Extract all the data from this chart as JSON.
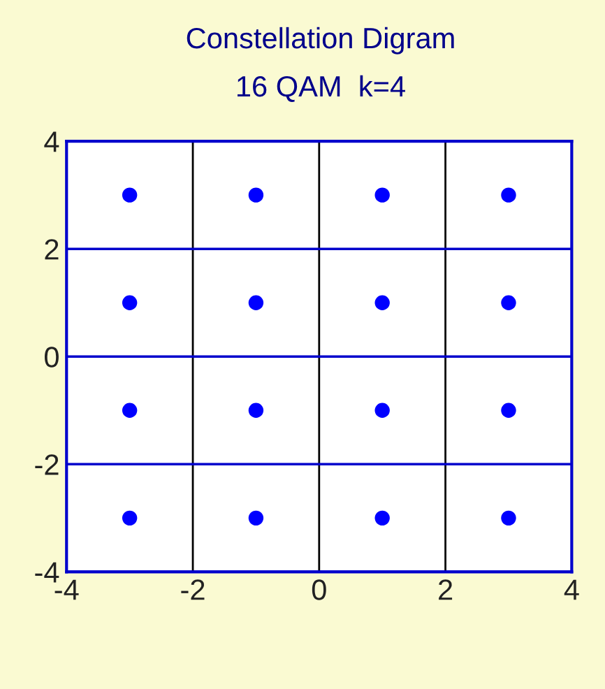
{
  "chart_data": {
    "type": "scatter",
    "title": "Constellation Digram",
    "subtitle": "16 QAM  k=4",
    "x": [
      -3,
      -1,
      1,
      3,
      -3,
      -1,
      1,
      3,
      -3,
      -1,
      1,
      3,
      -3,
      -1,
      1,
      3
    ],
    "series": [
      {
        "color": "#0000ff",
        "values": [
          3,
          3,
          3,
          3,
          1,
          1,
          1,
          1,
          -1,
          -1,
          -1,
          -1,
          -3,
          -3,
          -3,
          -3
        ]
      }
    ],
    "xlim": [
      -4,
      4
    ],
    "ylim": [
      -4,
      4
    ],
    "xticks": [
      -4,
      -2,
      0,
      2,
      4
    ],
    "yticks": [
      -4,
      -2,
      0,
      2,
      4
    ],
    "grid": true,
    "marker": "circle"
  }
}
